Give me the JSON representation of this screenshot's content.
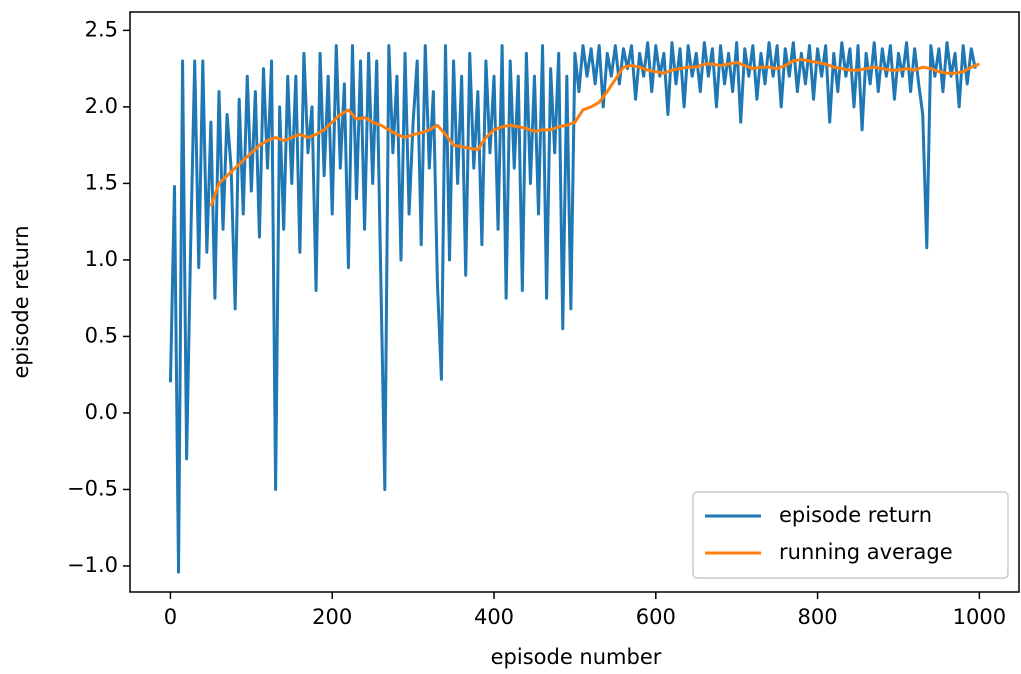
{
  "chart_data": {
    "type": "line",
    "xlabel": "episode number",
    "ylabel": "episode return",
    "xlim": [
      -50,
      1049
    ],
    "ylim": [
      -1.17,
      2.62
    ],
    "xticks": [
      0,
      200,
      400,
      600,
      800,
      1000
    ],
    "yticks": [
      {
        "value": -1.0,
        "label": "−1.0"
      },
      {
        "value": -0.5,
        "label": "−0.5"
      },
      {
        "value": 0.0,
        "label": "0.0"
      },
      0.5,
      {
        "value": 1.0,
        "label": "1.0"
      },
      1.5,
      {
        "value": 2.0,
        "label": "2.0"
      },
      2.5
    ],
    "legend": "lower right",
    "series": [
      {
        "name": "episode return",
        "color": "#1f77b4",
        "x": [
          0,
          5,
          10,
          15,
          20,
          25,
          30,
          35,
          40,
          45,
          50,
          55,
          60,
          65,
          70,
          75,
          80,
          85,
          90,
          95,
          100,
          105,
          110,
          115,
          120,
          125,
          130,
          135,
          140,
          145,
          150,
          155,
          160,
          165,
          170,
          175,
          180,
          185,
          190,
          195,
          200,
          205,
          210,
          215,
          220,
          225,
          230,
          235,
          240,
          245,
          250,
          255,
          260,
          265,
          270,
          275,
          280,
          285,
          290,
          295,
          300,
          305,
          310,
          315,
          320,
          325,
          330,
          335,
          340,
          345,
          350,
          355,
          360,
          365,
          370,
          375,
          380,
          385,
          390,
          395,
          400,
          405,
          410,
          415,
          420,
          425,
          430,
          435,
          440,
          445,
          450,
          455,
          460,
          465,
          470,
          475,
          480,
          485,
          490,
          495,
          500,
          505,
          510,
          515,
          520,
          525,
          530,
          535,
          540,
          545,
          550,
          555,
          560,
          565,
          570,
          575,
          580,
          585,
          590,
          595,
          600,
          605,
          610,
          615,
          620,
          625,
          630,
          635,
          640,
          645,
          650,
          655,
          660,
          665,
          670,
          675,
          680,
          685,
          690,
          695,
          700,
          705,
          710,
          715,
          720,
          725,
          730,
          735,
          740,
          745,
          750,
          755,
          760,
          765,
          770,
          775,
          780,
          785,
          790,
          795,
          800,
          805,
          810,
          815,
          820,
          825,
          830,
          835,
          840,
          845,
          850,
          855,
          860,
          865,
          870,
          875,
          880,
          885,
          890,
          895,
          900,
          905,
          910,
          915,
          920,
          925,
          930,
          935,
          940,
          945,
          950,
          955,
          960,
          965,
          970,
          975,
          980,
          985,
          990,
          995
        ],
        "values": [
          0.2,
          1.48,
          -1.04,
          2.3,
          -0.3,
          1.1,
          2.3,
          0.95,
          2.3,
          1.05,
          1.9,
          0.75,
          2.1,
          1.2,
          1.95,
          1.6,
          0.68,
          2.05,
          1.3,
          2.2,
          1.45,
          2.1,
          1.15,
          2.25,
          1.6,
          2.3,
          -0.5,
          2.0,
          1.2,
          2.2,
          1.5,
          2.2,
          1.05,
          2.35,
          1.7,
          2.0,
          0.8,
          2.35,
          1.55,
          2.2,
          1.3,
          2.4,
          1.6,
          2.15,
          0.95,
          2.4,
          1.4,
          2.3,
          1.2,
          2.35,
          1.5,
          2.3,
          0.9,
          -0.5,
          2.4,
          1.7,
          2.2,
          1.0,
          2.35,
          1.3,
          1.9,
          2.3,
          1.1,
          2.4,
          1.6,
          2.1,
          0.85,
          0.22,
          2.4,
          1.0,
          2.3,
          1.5,
          2.2,
          0.9,
          2.35,
          1.6,
          2.1,
          1.1,
          2.3,
          1.7,
          2.2,
          1.2,
          2.4,
          0.75,
          2.3,
          1.6,
          2.2,
          0.8,
          2.35,
          1.5,
          2.2,
          1.3,
          2.4,
          0.75,
          2.25,
          1.7,
          2.35,
          0.55,
          2.2,
          0.68,
          2.35,
          2.1,
          2.4,
          2.2,
          2.38,
          2.15,
          2.4,
          2.0,
          2.35,
          2.2,
          2.4,
          2.15,
          2.38,
          2.25,
          2.4,
          2.05,
          2.35,
          2.2,
          2.42,
          2.1,
          2.4,
          2.2,
          2.35,
          1.95,
          2.42,
          2.15,
          2.38,
          2.0,
          2.4,
          2.2,
          2.35,
          2.1,
          2.42,
          2.2,
          2.38,
          2.0,
          2.4,
          2.15,
          2.35,
          2.1,
          2.42,
          1.9,
          2.38,
          2.2,
          2.4,
          2.05,
          2.35,
          2.15,
          2.42,
          2.2,
          2.4,
          2.0,
          2.38,
          2.2,
          2.42,
          2.1,
          2.35,
          2.15,
          2.4,
          2.05,
          2.38,
          2.2,
          2.4,
          1.9,
          2.35,
          2.1,
          2.42,
          2.2,
          2.38,
          2.0,
          2.4,
          1.85,
          2.35,
          2.15,
          2.42,
          2.1,
          2.38,
          2.2,
          2.4,
          2.05,
          2.35,
          2.2,
          2.42,
          2.1,
          2.38,
          2.15,
          1.95,
          1.08,
          2.4,
          2.2,
          2.38,
          2.1,
          2.42,
          2.2,
          2.35,
          2.0,
          2.4,
          2.15,
          2.38,
          2.25
        ]
      },
      {
        "name": "running average",
        "color": "#ff7f0e",
        "x": [
          50,
          60,
          70,
          80,
          90,
          100,
          110,
          120,
          130,
          140,
          150,
          160,
          170,
          180,
          190,
          200,
          210,
          220,
          230,
          240,
          250,
          260,
          270,
          280,
          290,
          300,
          310,
          320,
          330,
          340,
          350,
          360,
          370,
          380,
          390,
          400,
          410,
          420,
          430,
          440,
          450,
          460,
          470,
          480,
          490,
          500,
          510,
          520,
          530,
          540,
          550,
          560,
          570,
          580,
          590,
          600,
          610,
          620,
          630,
          640,
          650,
          660,
          670,
          680,
          690,
          700,
          710,
          720,
          730,
          740,
          750,
          760,
          770,
          780,
          790,
          800,
          810,
          820,
          830,
          840,
          850,
          860,
          870,
          880,
          890,
          900,
          910,
          920,
          930,
          940,
          950,
          960,
          970,
          980,
          990,
          1000
        ],
        "values": [
          1.35,
          1.5,
          1.55,
          1.6,
          1.65,
          1.7,
          1.75,
          1.78,
          1.8,
          1.78,
          1.8,
          1.82,
          1.8,
          1.82,
          1.85,
          1.9,
          1.95,
          1.98,
          1.92,
          1.93,
          1.9,
          1.88,
          1.85,
          1.82,
          1.8,
          1.82,
          1.83,
          1.85,
          1.88,
          1.82,
          1.75,
          1.74,
          1.73,
          1.72,
          1.8,
          1.85,
          1.87,
          1.88,
          1.87,
          1.86,
          1.84,
          1.85,
          1.85,
          1.87,
          1.88,
          1.9,
          1.98,
          2.0,
          2.03,
          2.1,
          2.18,
          2.26,
          2.27,
          2.26,
          2.24,
          2.23,
          2.22,
          2.24,
          2.25,
          2.26,
          2.26,
          2.28,
          2.28,
          2.27,
          2.28,
          2.29,
          2.27,
          2.25,
          2.26,
          2.26,
          2.25,
          2.27,
          2.3,
          2.31,
          2.3,
          2.29,
          2.28,
          2.26,
          2.25,
          2.24,
          2.24,
          2.25,
          2.26,
          2.25,
          2.24,
          2.24,
          2.25,
          2.24,
          2.26,
          2.25,
          2.23,
          2.22,
          2.22,
          2.23,
          2.26,
          2.28
        ]
      }
    ]
  }
}
